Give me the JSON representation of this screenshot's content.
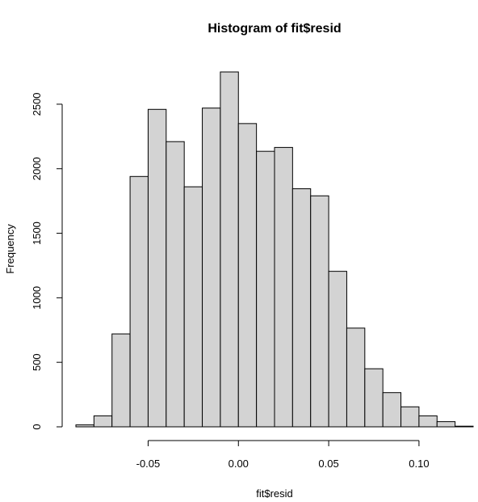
{
  "chart_data": {
    "type": "bar",
    "subtype": "histogram",
    "title": "Histogram of fit$resid",
    "xlabel": "fit$resid",
    "ylabel": "Frequency",
    "bin_edges": [
      -0.09,
      -0.08,
      -0.07,
      -0.06,
      -0.05,
      -0.04,
      -0.03,
      -0.02,
      -0.01,
      0.0,
      0.01,
      0.02,
      0.03,
      0.04,
      0.05,
      0.06,
      0.07,
      0.08,
      0.09,
      0.1,
      0.11,
      0.12,
      0.13
    ],
    "values": [
      15,
      85,
      720,
      1940,
      2460,
      2210,
      1860,
      2470,
      2750,
      2350,
      2135,
      2165,
      1845,
      1790,
      1205,
      765,
      450,
      265,
      155,
      85,
      40,
      5
    ],
    "xlim": [
      -0.09,
      0.13
    ],
    "ylim": [
      0,
      2750
    ],
    "x_ticks": [
      -0.05,
      0.0,
      0.05,
      0.1
    ],
    "x_tick_labels": [
      "-0.05",
      "0.00",
      "0.05",
      "0.10"
    ],
    "y_ticks": [
      0,
      500,
      1000,
      1500,
      2000,
      2500
    ],
    "y_tick_labels": [
      "0",
      "500",
      "1000",
      "1500",
      "2000",
      "2500"
    ],
    "bar_color": "#d3d3d3",
    "grid": false,
    "legend": "none"
  }
}
